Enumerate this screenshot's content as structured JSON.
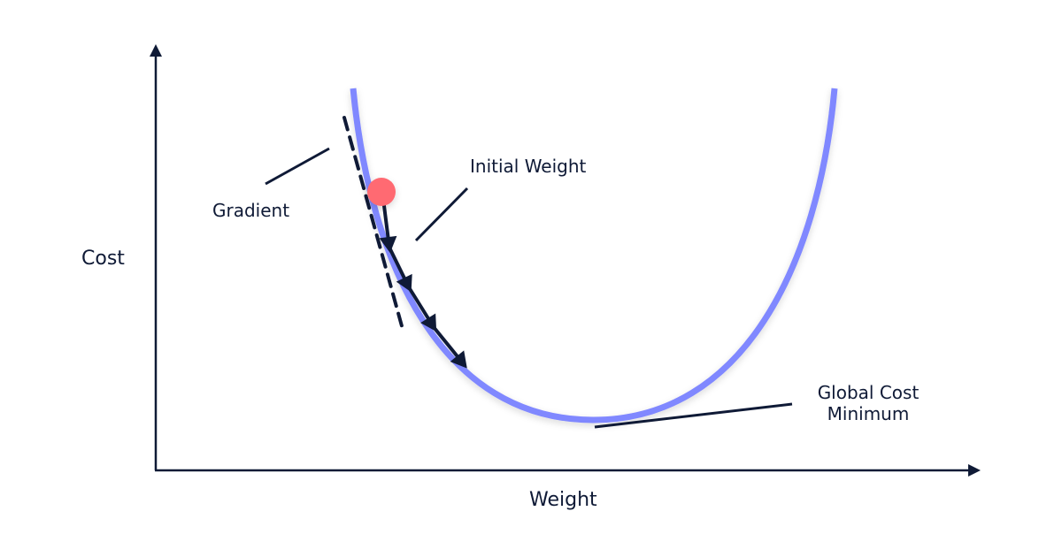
{
  "labels": {
    "y_axis": "Cost",
    "x_axis": "Weight",
    "gradient": "Gradient",
    "initial_weight": "Initial Weight",
    "global_min_line1": "Global Cost",
    "global_min_line2": "Minimum"
  },
  "colors": {
    "curve": "#8088ff",
    "ink": "#0f1a36",
    "initial_point": "#ff6b72"
  },
  "steps": 4
}
